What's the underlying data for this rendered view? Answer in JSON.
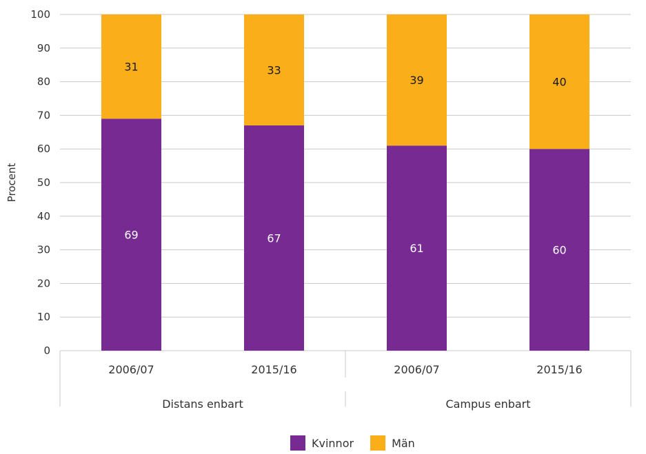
{
  "chart_data": {
    "type": "bar",
    "stacked": true,
    "ylabel": "Procent",
    "ylim": [
      0,
      100
    ],
    "yticks": [
      0,
      10,
      20,
      30,
      40,
      50,
      60,
      70,
      80,
      90,
      100
    ],
    "grid": true,
    "legend_position": "bottom",
    "categories": [
      "2006/07",
      "2015/16",
      "2006/07",
      "2015/16"
    ],
    "groups": [
      {
        "label": "Distans enbart",
        "categories": [
          0,
          1
        ]
      },
      {
        "label": "Campus enbart",
        "categories": [
          2,
          3
        ]
      }
    ],
    "series": [
      {
        "name": "Kvinnor",
        "color": "#772a91",
        "label_color": "#ffffff",
        "values": [
          69,
          67,
          61,
          60
        ]
      },
      {
        "name": "Män",
        "color": "#f9ae1a",
        "label_color": "#1a1a1a",
        "values": [
          31,
          33,
          39,
          40
        ]
      }
    ]
  }
}
